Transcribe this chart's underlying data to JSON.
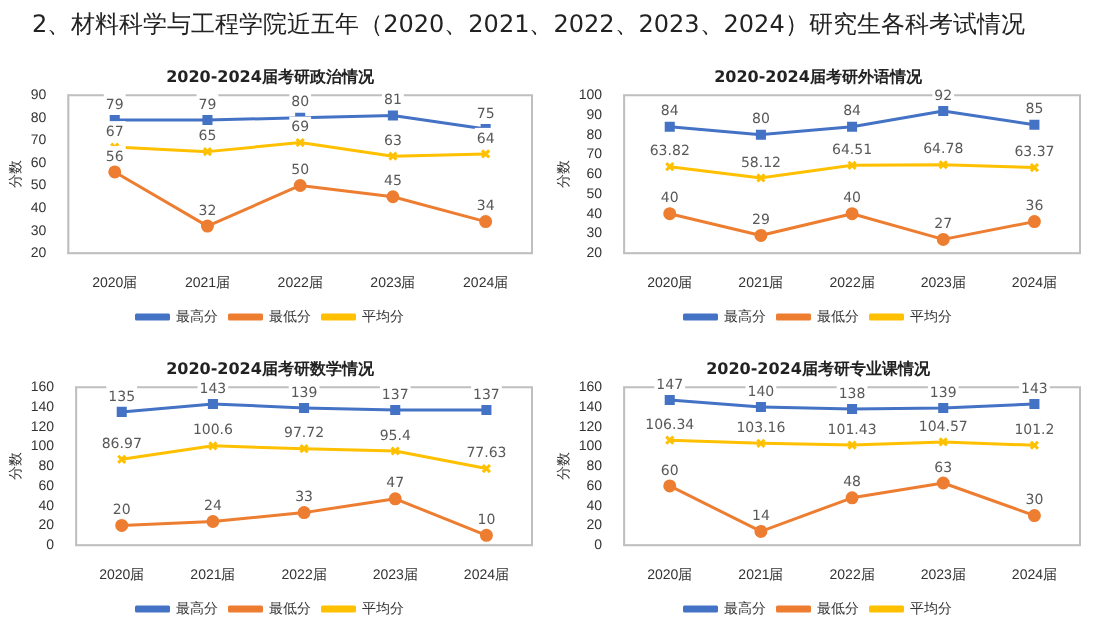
{
  "chart_data": [
    {
      "type": "other",
      "title": "2、材料科学与工程学院近五年（2020、2021、2022、2023、2024）研究生各科考试情况"
    },
    {
      "type": "line",
      "title": "2020-2024届考研政治情况",
      "ylabel": "分数",
      "categories": [
        "2020届",
        "2021届",
        "2022届",
        "2023届",
        "2024届"
      ],
      "ylim": [
        20,
        90
      ],
      "yticks": [
        20,
        30,
        40,
        50,
        60,
        70,
        80,
        90
      ],
      "grid": false,
      "legend": "bottom",
      "data_labels": true,
      "series": [
        {
          "name": "最高分",
          "color": "#4472c4",
          "marker": "square",
          "values": [
            79,
            79,
            80,
            81,
            75
          ]
        },
        {
          "name": "最低分",
          "color": "#ed7d31",
          "marker": "circle",
          "values": [
            56,
            32,
            50,
            45,
            34
          ]
        },
        {
          "name": "平均分",
          "color": "#ffc000",
          "marker": "cross",
          "values": [
            67,
            65,
            69,
            63,
            64
          ]
        }
      ]
    },
    {
      "type": "line",
      "title": "2020-2024届考研外语情况",
      "ylabel": "分数",
      "categories": [
        "2020届",
        "2021届",
        "2022届",
        "2023届",
        "2024届"
      ],
      "ylim": [
        20,
        100
      ],
      "yticks": [
        20,
        30,
        40,
        50,
        60,
        70,
        80,
        90,
        100
      ],
      "grid": false,
      "legend": "bottom",
      "data_labels": true,
      "series": [
        {
          "name": "最高分",
          "color": "#4472c4",
          "marker": "square",
          "values": [
            84,
            80,
            84,
            92,
            85
          ]
        },
        {
          "name": "最低分",
          "color": "#ed7d31",
          "marker": "circle",
          "values": [
            40,
            29,
            40,
            27,
            36
          ]
        },
        {
          "name": "平均分",
          "color": "#ffc000",
          "marker": "cross",
          "values": [
            63.82,
            58.12,
            64.51,
            64.78,
            63.37
          ]
        }
      ]
    },
    {
      "type": "line",
      "title": "2020-2024届考研数学情况",
      "ylabel": "分数",
      "categories": [
        "2020届",
        "2021届",
        "2022届",
        "2023届",
        "2024届"
      ],
      "ylim": [
        0,
        160
      ],
      "yticks": [
        0,
        20,
        40,
        60,
        80,
        100,
        120,
        140,
        160
      ],
      "grid": false,
      "legend": "bottom",
      "data_labels": true,
      "series": [
        {
          "name": "最高分",
          "color": "#4472c4",
          "marker": "square",
          "values": [
            135,
            143,
            139,
            137,
            137
          ]
        },
        {
          "name": "最低分",
          "color": "#ed7d31",
          "marker": "circle",
          "values": [
            20,
            24,
            33,
            47,
            10
          ]
        },
        {
          "name": "平均分",
          "color": "#ffc000",
          "marker": "cross",
          "values": [
            86.97,
            100.6,
            97.72,
            95.4,
            77.63
          ]
        }
      ]
    },
    {
      "type": "line",
      "title": "2020-2024届考研专业课情况",
      "ylabel": "分数",
      "categories": [
        "2020届",
        "2021届",
        "2022届",
        "2023届",
        "2024届"
      ],
      "ylim": [
        0,
        160
      ],
      "yticks": [
        0,
        20,
        40,
        60,
        80,
        100,
        120,
        140,
        160
      ],
      "grid": false,
      "legend": "bottom",
      "data_labels": true,
      "series": [
        {
          "name": "最高分",
          "color": "#4472c4",
          "marker": "square",
          "values": [
            147,
            140,
            138,
            139,
            143
          ]
        },
        {
          "name": "最低分",
          "color": "#ed7d31",
          "marker": "circle",
          "values": [
            60,
            14,
            48,
            63,
            30
          ]
        },
        {
          "name": "平均分",
          "color": "#ffc000",
          "marker": "cross",
          "values": [
            106.34,
            103.16,
            101.43,
            104.57,
            101.2
          ]
        }
      ]
    }
  ]
}
